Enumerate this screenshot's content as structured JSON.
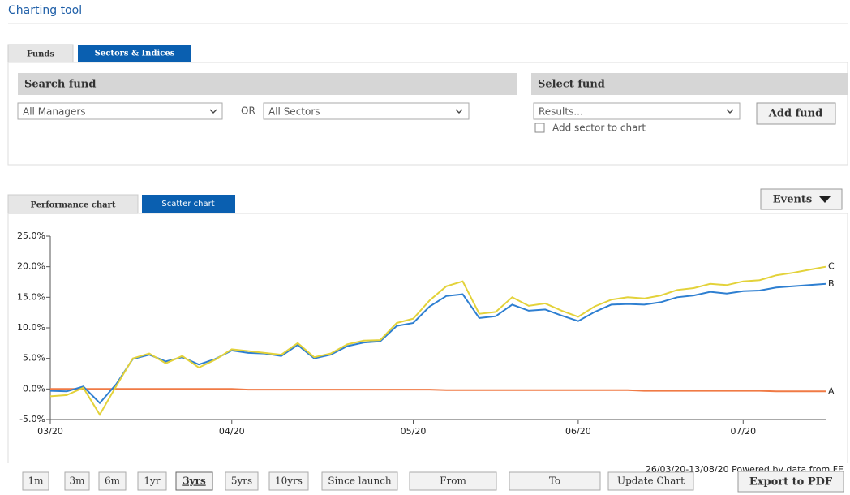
{
  "header": {
    "title": "Charting tool"
  },
  "search_tabs": [
    "Funds",
    "Sectors & Indices"
  ],
  "search": {
    "heading": "Search fund",
    "managers": "All Managers",
    "or": "OR",
    "sectors": "All Sectors"
  },
  "select": {
    "heading": "Select fund",
    "results": "Results...",
    "add_sector": "Add sector to chart",
    "add_button": "Add fund"
  },
  "chart_tabs": [
    "Performance chart",
    "Scatter chart"
  ],
  "events_button": "Events",
  "chart_data": {
    "type": "line",
    "subtitle": "26/03/20-13/08/20 Powered by data from FE",
    "ylim": [
      -5,
      25
    ],
    "yticks": [
      {
        "value": -5,
        "label": "-5.0%"
      },
      {
        "value": 0,
        "label": "0.0%"
      },
      {
        "value": 5,
        "label": "5.0%"
      },
      {
        "value": 10,
        "label": "10.0%"
      },
      {
        "value": 15,
        "label": "15.0%"
      },
      {
        "value": 20,
        "label": "20.0%"
      },
      {
        "value": 25,
        "label": "25.0%"
      }
    ],
    "xlim": [
      0,
      47
    ],
    "xticks": [
      {
        "value": 0,
        "label": "03/20"
      },
      {
        "value": 11,
        "label": "04/20"
      },
      {
        "value": 22,
        "label": "05/20"
      },
      {
        "value": 32,
        "label": "06/20"
      },
      {
        "value": 42,
        "label": "07/20"
      }
    ],
    "series": [
      {
        "name": "A",
        "color": "#f07a45",
        "values": [
          0,
          0,
          0,
          0,
          0,
          0,
          0,
          0,
          0,
          0,
          0,
          0,
          -0.1,
          -0.1,
          -0.1,
          -0.1,
          -0.1,
          -0.1,
          -0.1,
          -0.1,
          -0.1,
          -0.1,
          -0.1,
          -0.1,
          -0.2,
          -0.2,
          -0.2,
          -0.2,
          -0.2,
          -0.2,
          -0.2,
          -0.2,
          -0.2,
          -0.2,
          -0.2,
          -0.2,
          -0.3,
          -0.3,
          -0.3,
          -0.3,
          -0.3,
          -0.3,
          -0.3,
          -0.3,
          -0.4,
          -0.4,
          -0.4,
          -0.4
        ]
      },
      {
        "name": "B",
        "color": "#2e7fd1",
        "values": [
          -0.3,
          -0.4,
          0.4,
          -2.3,
          0.8,
          4.9,
          5.6,
          4.5,
          5.2,
          4.0,
          4.9,
          6.3,
          5.9,
          5.8,
          5.4,
          7.2,
          5.0,
          5.6,
          7.0,
          7.6,
          7.8,
          10.3,
          10.8,
          13.5,
          15.2,
          15.5,
          11.6,
          11.9,
          13.8,
          12.8,
          13.0,
          12.0,
          11.1,
          12.6,
          13.8,
          13.9,
          13.8,
          14.2,
          15.0,
          15.3,
          15.9,
          15.6,
          16.0,
          16.1,
          16.6,
          16.8,
          17.0,
          17.2
        ]
      },
      {
        "name": "C",
        "color": "#e3d23a",
        "values": [
          -1.2,
          -1.0,
          0.2,
          -4.2,
          0.5,
          5.0,
          5.8,
          4.2,
          5.4,
          3.5,
          4.8,
          6.5,
          6.2,
          5.9,
          5.6,
          7.5,
          5.2,
          5.8,
          7.3,
          7.9,
          8.0,
          10.8,
          11.5,
          14.5,
          16.8,
          17.6,
          12.3,
          12.6,
          15.0,
          13.6,
          14.0,
          12.8,
          11.8,
          13.5,
          14.6,
          15.0,
          14.8,
          15.3,
          16.2,
          16.5,
          17.2,
          17.0,
          17.6,
          17.8,
          18.6,
          19.0,
          19.5,
          20.0
        ]
      }
    ]
  },
  "period_buttons": [
    "1m",
    "3m",
    "6m",
    "1yr",
    "3yrs",
    "5yrs",
    "10yrs",
    "Since launch",
    "From",
    "To",
    "Update Chart"
  ],
  "export_button": "Export to PDF"
}
